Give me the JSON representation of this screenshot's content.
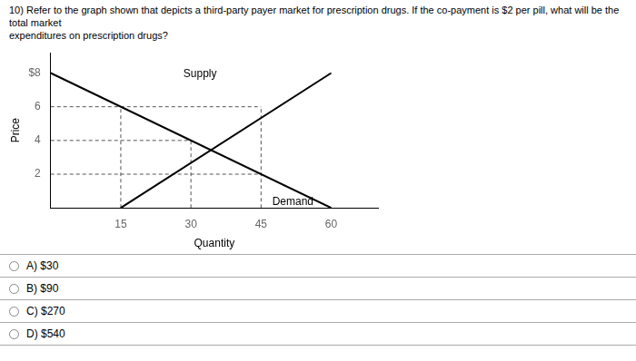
{
  "chart_data": {
    "type": "line",
    "title": [
      "10) Refer to the graph shown that depicts a third-party payer market for prescription drugs. If the co-payment is $2 per pill, what will be the total market",
      "expenditures on prescription drugs?"
    ],
    "x_label": "Quantity",
    "y_label": "Price",
    "xlim": [
      0,
      70
    ],
    "xticks": [
      15,
      30,
      45,
      60
    ],
    "ylim": [
      0,
      9.2
    ],
    "yticks": [
      2,
      4,
      6,
      {
        "value": 8,
        "label": "$8"
      }
    ],
    "grid": false,
    "series": [
      {
        "x": [
          0,
          60
        ],
        "values": [
          8,
          0
        ],
        "color": "#000000",
        "line_style": "solid"
      },
      {
        "x": [
          15,
          60
        ],
        "values": [
          0,
          8
        ],
        "color": "#000000",
        "line_style": "solid"
      },
      {
        "x": [
          0,
          45
        ],
        "values": [
          6,
          6
        ],
        "color": "#555555",
        "line_style": "dashed"
      },
      {
        "x": [
          45,
          45
        ],
        "values": [
          0,
          6
        ],
        "color": "#555555",
        "line_style": "dashed"
      },
      {
        "x": [
          0,
          30
        ],
        "values": [
          4,
          4
        ],
        "color": "#555555",
        "line_style": "dashed"
      },
      {
        "x": [
          30,
          30
        ],
        "values": [
          0,
          4
        ],
        "color": "#555555",
        "line_style": "dashed"
      },
      {
        "x": [
          0,
          45
        ],
        "values": [
          2,
          2
        ],
        "color": "#555555",
        "line_style": "dashed"
      },
      {
        "x": [
          15,
          15
        ],
        "values": [
          0,
          6
        ],
        "color": "#555555",
        "line_style": "dashed"
      }
    ],
    "annotations": [
      {
        "text": "Supply",
        "x": 28,
        "y": 7.5
      },
      {
        "text": "Demand",
        "x": 47,
        "y": 0.8
      }
    ],
    "answers": [
      "A) $30",
      "B) $90",
      "C) $270",
      "D) $540"
    ]
  }
}
